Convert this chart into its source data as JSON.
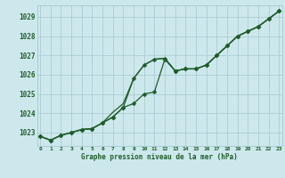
{
  "title": "Graphe pression niveau de la mer (hPa)",
  "hours": [
    0,
    1,
    2,
    3,
    4,
    5,
    6,
    7,
    8,
    9,
    10,
    11,
    12,
    13,
    14,
    15,
    16,
    17,
    18,
    19,
    20,
    21,
    22,
    23
  ],
  "line_main": [
    1022.8,
    1022.6,
    1022.85,
    1023.0,
    1023.15,
    1023.2,
    1023.5,
    1023.8,
    1024.3,
    1024.5,
    1025.0,
    1025.1,
    1026.8,
    1026.2,
    1026.3,
    1026.3,
    1026.5,
    1027.0,
    1027.5,
    1028.0,
    1028.25,
    1028.5,
    1028.9,
    1029.3
  ],
  "line_high": [
    1022.8,
    1022.6,
    1022.85,
    1023.0,
    1023.15,
    1023.2,
    1023.5,
    1023.8,
    1024.3,
    1025.8,
    1026.5,
    1026.8,
    1026.85,
    1026.2,
    1026.3,
    1026.3,
    1026.5,
    1027.0,
    1027.5,
    1028.0,
    1028.25,
    1028.5,
    1028.9,
    1029.3
  ],
  "line_spike": [
    1022.8,
    1022.6,
    1022.85,
    1023.0,
    1023.15,
    1023.2,
    1023.5,
    1024.05,
    1024.5,
    1025.8,
    1026.5,
    1026.8,
    1026.85,
    1026.2,
    1026.3,
    1026.3,
    1026.5,
    1027.0,
    1027.5,
    1028.0,
    1028.25,
    1028.5,
    1028.9,
    1029.3
  ],
  "bg_color": "#cde8ec",
  "grid_color": "#aacdd4",
  "line_color": "#1e5c28",
  "ylim_min": 1022.3,
  "ylim_max": 1029.6,
  "yticks": [
    1023,
    1024,
    1025,
    1026,
    1027,
    1028,
    1029
  ],
  "xlim_min": -0.3,
  "xlim_max": 23.3
}
